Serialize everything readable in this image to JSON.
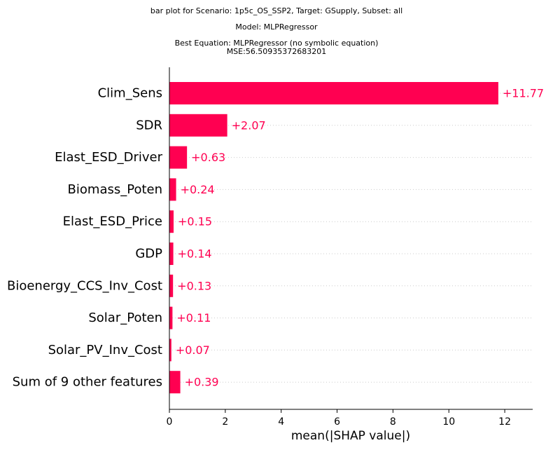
{
  "chart_data": {
    "type": "bar",
    "orientation": "horizontal",
    "title_lines": [
      "bar plot for Scenario: 1p5c_OS_SSP2, Target: GSupply, Subset: all",
      "Model: MLPRegressor",
      "Best Equation: MLPRegressor (no symbolic equation)",
      "MSE:56.50935372683201"
    ],
    "categories": [
      "Clim_Sens",
      "SDR",
      "Elast_ESD_Driver",
      "Biomass_Poten",
      "Elast_ESD_Price",
      "GDP",
      "Bioenergy_CCS_Inv_Cost",
      "Solar_Poten",
      "Solar_PV_Inv_Cost",
      "Sum of 9 other features"
    ],
    "values": [
      11.77,
      2.07,
      0.63,
      0.24,
      0.15,
      0.14,
      0.13,
      0.11,
      0.07,
      0.39
    ],
    "value_labels": [
      "+11.77",
      "+2.07",
      "+0.63",
      "+0.24",
      "+0.15",
      "+0.14",
      "+0.13",
      "+0.11",
      "+0.07",
      "+0.39"
    ],
    "xlabel": "mean(|SHAP value|)",
    "ylabel": "",
    "xlim": [
      0,
      13
    ],
    "xticks": [
      0,
      2,
      4,
      6,
      8,
      10,
      12
    ],
    "colors": {
      "bar": "#ff0051",
      "label": "#ff0051",
      "gridline": "#cccccc",
      "axis": "#000000"
    },
    "grid": "dotted horizontal row lines"
  }
}
